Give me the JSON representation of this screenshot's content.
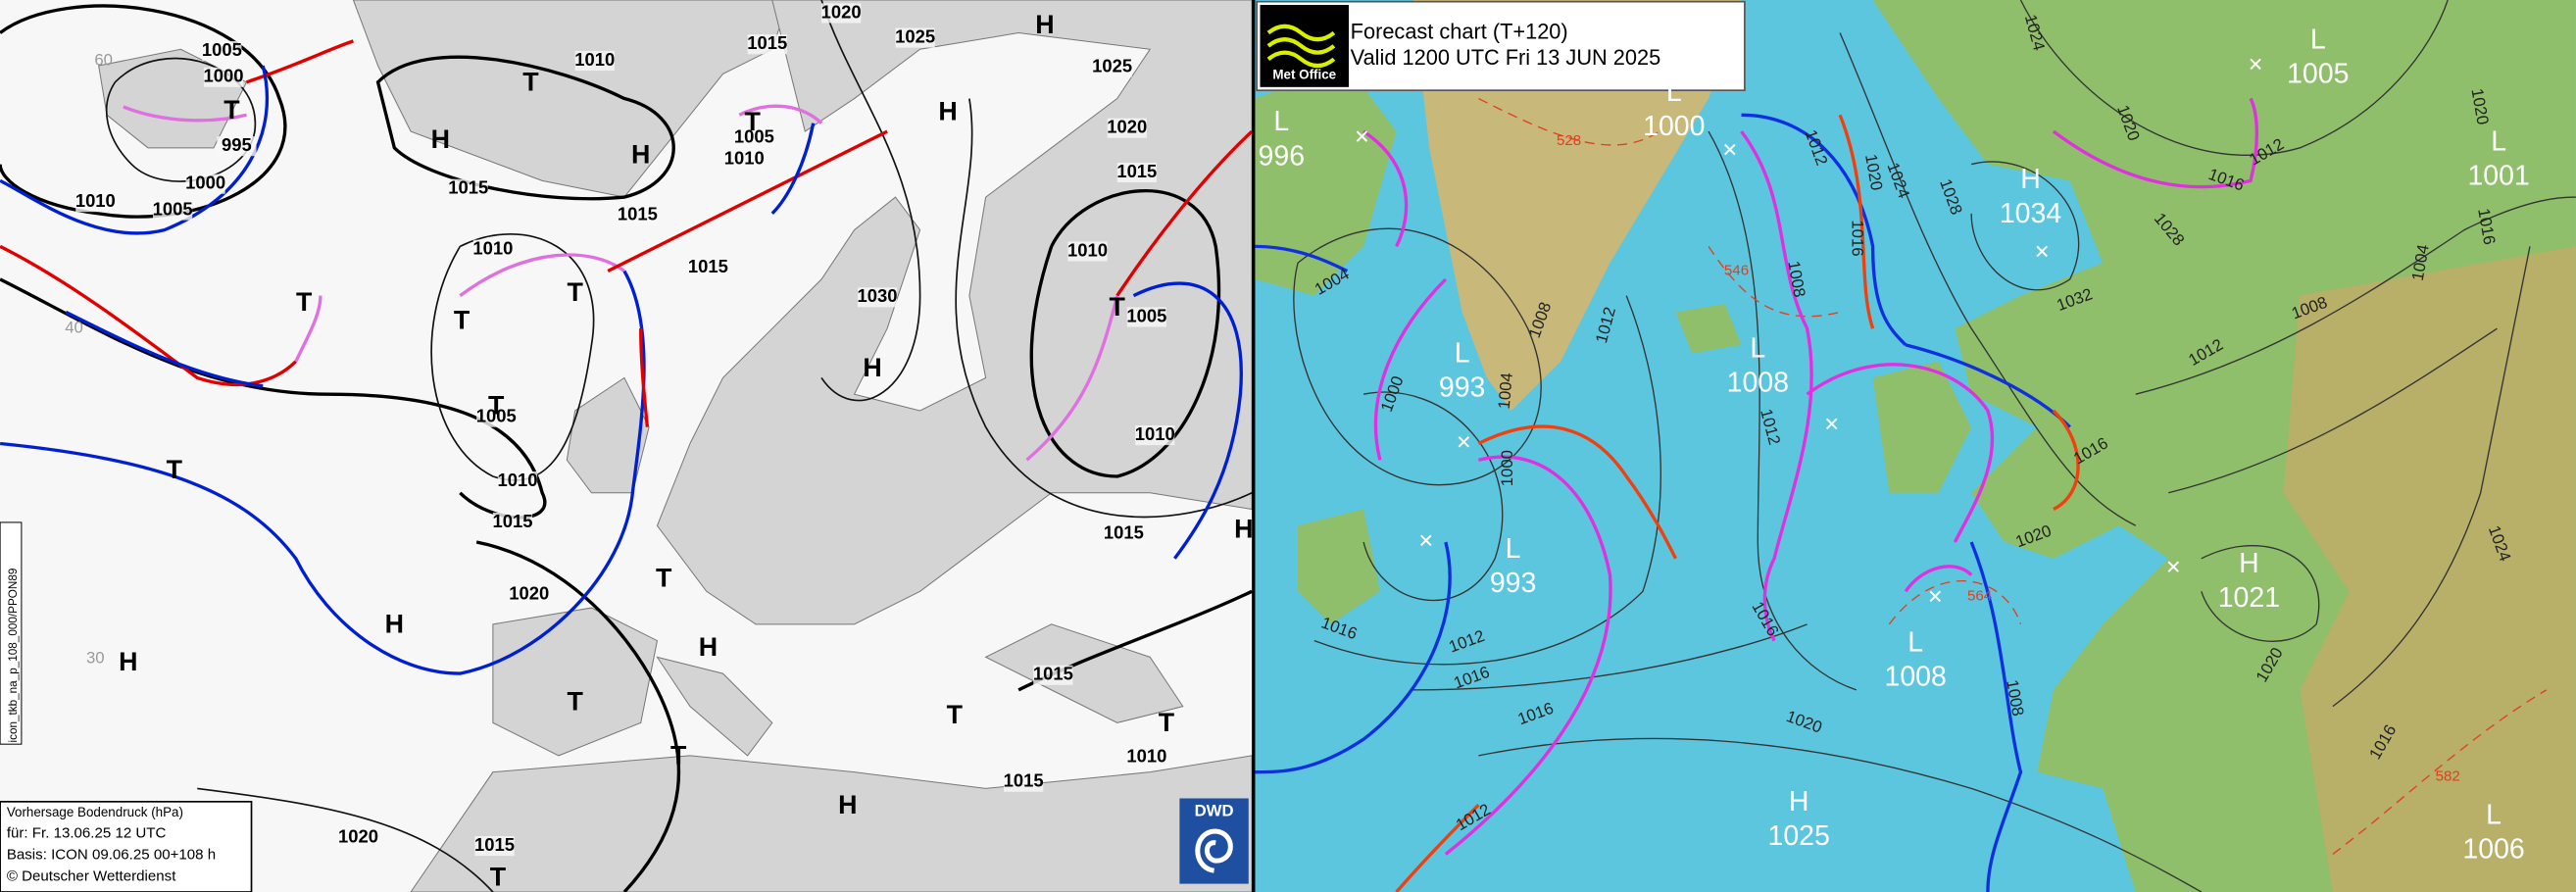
{
  "left_chart": {
    "side_label": "icon_tkb_na_p_108_000/PPON89",
    "logo": "DWD",
    "legend": {
      "title": "Vorhersage Bodendruck (hPa)",
      "valid": "für:  Fr. 13.06.25  12 UTC",
      "basis": "Basis: ICON  09.06.25 00+108 h",
      "copyright": "© Deutscher Wetterdienst"
    },
    "latitude_labels": [
      "60",
      "40",
      "30"
    ],
    "isobar_labels": [
      1005,
      1000,
      995,
      1000,
      1010,
      1005,
      1010,
      1015,
      1020,
      1025,
      1025,
      1020,
      1015,
      1010,
      1005,
      1010,
      1015,
      1010,
      1005,
      1010,
      1015,
      1015,
      1015,
      1005,
      1010,
      1015,
      1030,
      1020,
      1015,
      1015,
      1010,
      1020,
      1015
    ],
    "systems": [
      "T",
      "T",
      "H",
      "H",
      "T",
      "H",
      "H",
      "T",
      "T",
      "T",
      "T",
      "H",
      "T",
      "T",
      "H",
      "T",
      "H",
      "H",
      "T",
      "T",
      "H",
      "T",
      "T",
      "T",
      "H"
    ]
  },
  "right_chart": {
    "logo": "Met Office",
    "title": "Forecast chart (T+120)",
    "valid": "Valid 1200 UTC Fri 13 JUN 2025",
    "centers": [
      {
        "type": "L",
        "value": "996"
      },
      {
        "type": "L",
        "value": "1000"
      },
      {
        "type": "L",
        "value": "1005"
      },
      {
        "type": "L",
        "value": "1001"
      },
      {
        "type": "H",
        "value": "1034"
      },
      {
        "type": "L",
        "value": "993"
      },
      {
        "type": "L",
        "value": "1008"
      },
      {
        "type": "L",
        "value": "993"
      },
      {
        "type": "H",
        "value": "1021"
      },
      {
        "type": "L",
        "value": "1008"
      },
      {
        "type": "H",
        "value": "1025"
      },
      {
        "type": "L",
        "value": "1006"
      }
    ],
    "isobar_labels": [
      1004,
      1008,
      1012,
      1004,
      1000,
      1000,
      1024,
      1020,
      1016,
      1012,
      1028,
      1032,
      1028,
      1024,
      1020,
      1016,
      1012,
      1008,
      1012,
      1016,
      1020,
      1016,
      1012,
      1008,
      1004,
      1016,
      1020,
      1024,
      1020,
      1016,
      1008,
      1012,
      1016,
      1016,
      1012,
      1016,
      1020
    ],
    "thickness_labels": [
      "528",
      "546",
      "564",
      "582"
    ]
  }
}
